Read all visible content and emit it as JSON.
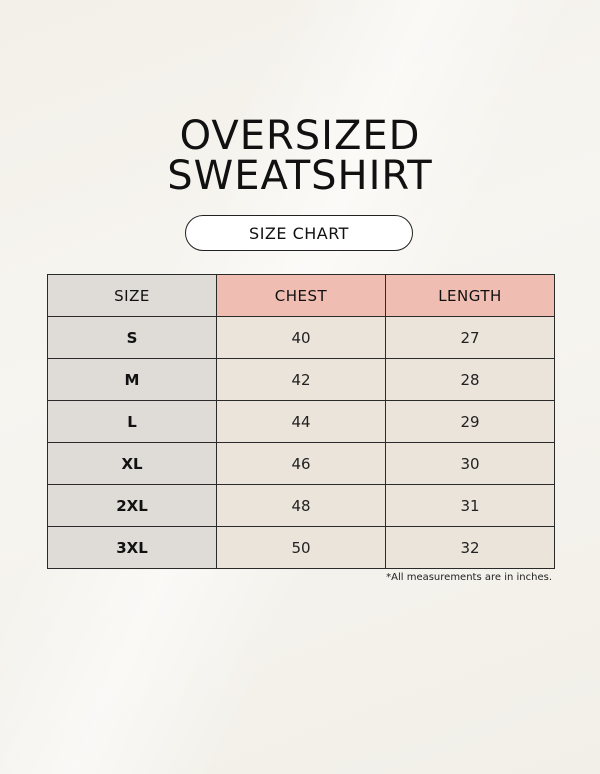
{
  "title": {
    "line1": "OVERSIZED",
    "line2": "SWEATSHIRT"
  },
  "badge": "SIZE CHART",
  "table": {
    "headers": [
      "SIZE",
      "CHEST",
      "LENGTH"
    ],
    "rows": [
      {
        "size": "S",
        "chest": "40",
        "length": "27"
      },
      {
        "size": "M",
        "chest": "42",
        "length": "28"
      },
      {
        "size": "L",
        "chest": "44",
        "length": "29"
      },
      {
        "size": "XL",
        "chest": "46",
        "length": "30"
      },
      {
        "size": "2XL",
        "chest": "48",
        "length": "31"
      },
      {
        "size": "3XL",
        "chest": "50",
        "length": "32"
      }
    ]
  },
  "footnote": "*All measurements are in inches.",
  "colors": {
    "background": "#f7f5f0",
    "header_accent": "#efbdb1",
    "size_column": "#dfdbd7",
    "value_cells": "#ebe4da"
  }
}
